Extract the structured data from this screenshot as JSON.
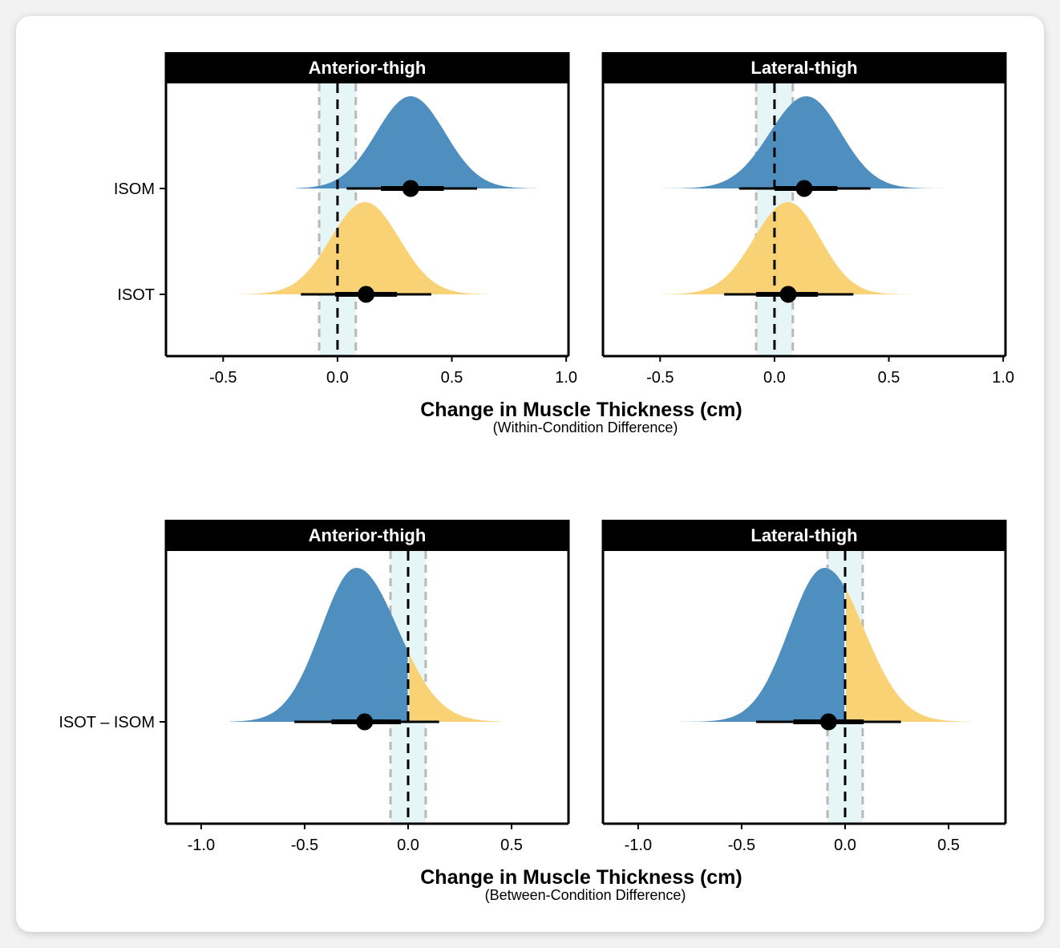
{
  "colors": {
    "isom": "#4f8fbf",
    "isot": "#f8d275",
    "rope_fill": "#e6f5f5",
    "rope_line": "#b8b8b8",
    "strip": "#000000"
  },
  "chart_data": [
    {
      "type": "halfeye",
      "section": "within",
      "xlabel": "Change in Muscle Thickness (cm)",
      "xsublabel": "(Within-Condition Difference)",
      "xlim": [
        -0.75,
        1.01
      ],
      "ticks": [
        -0.5,
        0.0,
        0.5,
        1.0
      ],
      "tick_labels": [
        "-0.5",
        "0.0",
        "0.5",
        "1.0"
      ],
      "rope": [
        -0.08,
        0.08
      ],
      "rows": [
        "ISOM",
        "ISOT"
      ],
      "panels": [
        {
          "title": "Anterior-thigh",
          "series": [
            {
              "row": "ISOM",
              "color": "isom",
              "mode": 0.32,
              "sd_left": 0.15,
              "sd_right": 0.15,
              "min": -0.18,
              "max": 0.87,
              "median": 0.32,
              "ci66": [
                0.19,
                0.465
              ],
              "ci95": [
                0.04,
                0.61
              ]
            },
            {
              "row": "ISOT",
              "color": "isot",
              "mode": 0.12,
              "sd_left": 0.15,
              "sd_right": 0.15,
              "min": -0.5,
              "max": 0.66,
              "median": 0.125,
              "ci66": [
                -0.01,
                0.26
              ],
              "ci95": [
                -0.16,
                0.41
              ]
            }
          ]
        },
        {
          "title": "Lateral-thigh",
          "series": [
            {
              "row": "ISOM",
              "color": "isom",
              "mode": 0.14,
              "sd_left": 0.16,
              "sd_right": 0.15,
              "min": -0.6,
              "max": 0.8,
              "median": 0.13,
              "ci66": [
                0.0,
                0.275
              ],
              "ci95": [
                -0.155,
                0.42
              ]
            },
            {
              "row": "ISOT",
              "color": "isot",
              "mode": 0.06,
              "sd_left": 0.15,
              "sd_right": 0.14,
              "min": -0.5,
              "max": 0.62,
              "median": 0.06,
              "ci66": [
                -0.08,
                0.19
              ],
              "ci95": [
                -0.22,
                0.345
              ]
            }
          ]
        }
      ]
    },
    {
      "type": "halfeye",
      "section": "between",
      "xlabel": "Change in Muscle Thickness (cm)",
      "xsublabel": "(Between-Condition Difference)",
      "xlim": [
        -1.17,
        0.775
      ],
      "ticks": [
        -1.0,
        -0.5,
        0.0,
        0.5
      ],
      "tick_labels": [
        "-1.0",
        "-0.5",
        "0.0",
        "0.5"
      ],
      "rope": [
        -0.085,
        0.085
      ],
      "rows": [
        "ISOT – ISOM"
      ],
      "panels": [
        {
          "title": "Anterior-thigh",
          "series": [
            {
              "row": "ISOT – ISOM",
              "split_at": 0,
              "color_below": "isom",
              "color_above": "isot",
              "mode": -0.25,
              "sd_left": 0.17,
              "sd_right": 0.2,
              "min": -0.86,
              "max": 0.45,
              "median": -0.21,
              "ci66": [
                -0.37,
                -0.035
              ],
              "ci95": [
                -0.55,
                0.15
              ]
            }
          ]
        },
        {
          "title": "Lateral-thigh",
          "series": [
            {
              "row": "ISOT – ISOM",
              "split_at": 0,
              "color_below": "isom",
              "color_above": "isot",
              "mode": -0.1,
              "sd_left": 0.17,
              "sd_right": 0.19,
              "min": -1.0,
              "max": 0.62,
              "median": -0.08,
              "ci66": [
                -0.25,
                0.09
              ],
              "ci95": [
                -0.43,
                0.27
              ]
            }
          ]
        }
      ]
    }
  ]
}
